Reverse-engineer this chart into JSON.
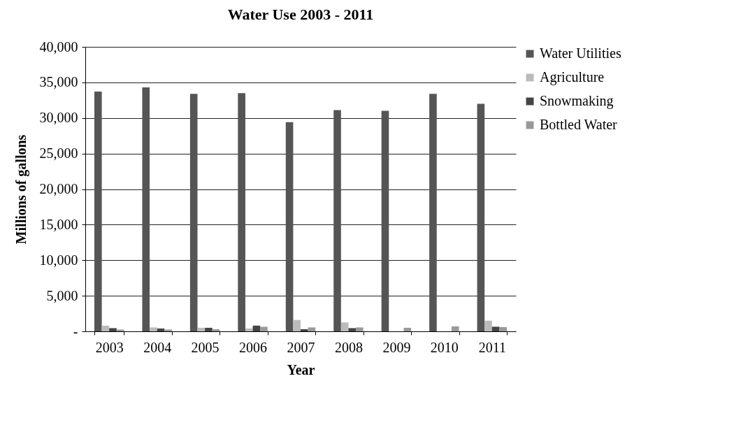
{
  "chart_data": {
    "type": "bar",
    "title": "Water Use  2003 - 2011",
    "xlabel": "Year",
    "ylabel": "Millions of gallons",
    "categories": [
      "2003",
      "2004",
      "2005",
      "2006",
      "2007",
      "2008",
      "2009",
      "2010",
      "2011"
    ],
    "series": [
      {
        "name": "Water Utilities",
        "color": "#555555",
        "values": [
          33700,
          34300,
          33400,
          33500,
          29400,
          31100,
          31000,
          33400,
          32000
        ]
      },
      {
        "name": "Agriculture",
        "color": "#bbbbbb",
        "values": [
          800,
          550,
          500,
          400,
          1600,
          1250,
          0,
          0,
          1500
        ]
      },
      {
        "name": "Snowmaking",
        "color": "#444444",
        "values": [
          450,
          400,
          500,
          800,
          300,
          450,
          0,
          0,
          650
        ]
      },
      {
        "name": "Bottled Water",
        "color": "#999999",
        "values": [
          250,
          250,
          300,
          650,
          550,
          550,
          500,
          700,
          600
        ]
      }
    ],
    "ylim": [
      0,
      40000
    ],
    "yticks": [
      {
        "value": 0,
        "label": "-"
      },
      {
        "value": 5000,
        "label": "5,000"
      },
      {
        "value": 10000,
        "label": "10,000"
      },
      {
        "value": 15000,
        "label": "15,000"
      },
      {
        "value": 20000,
        "label": "20,000"
      },
      {
        "value": 25000,
        "label": "25,000"
      },
      {
        "value": 30000,
        "label": "30,000"
      },
      {
        "value": 35000,
        "label": "35,000"
      },
      {
        "value": 40000,
        "label": "40,000"
      }
    ],
    "grid": "y",
    "legend": "right"
  }
}
